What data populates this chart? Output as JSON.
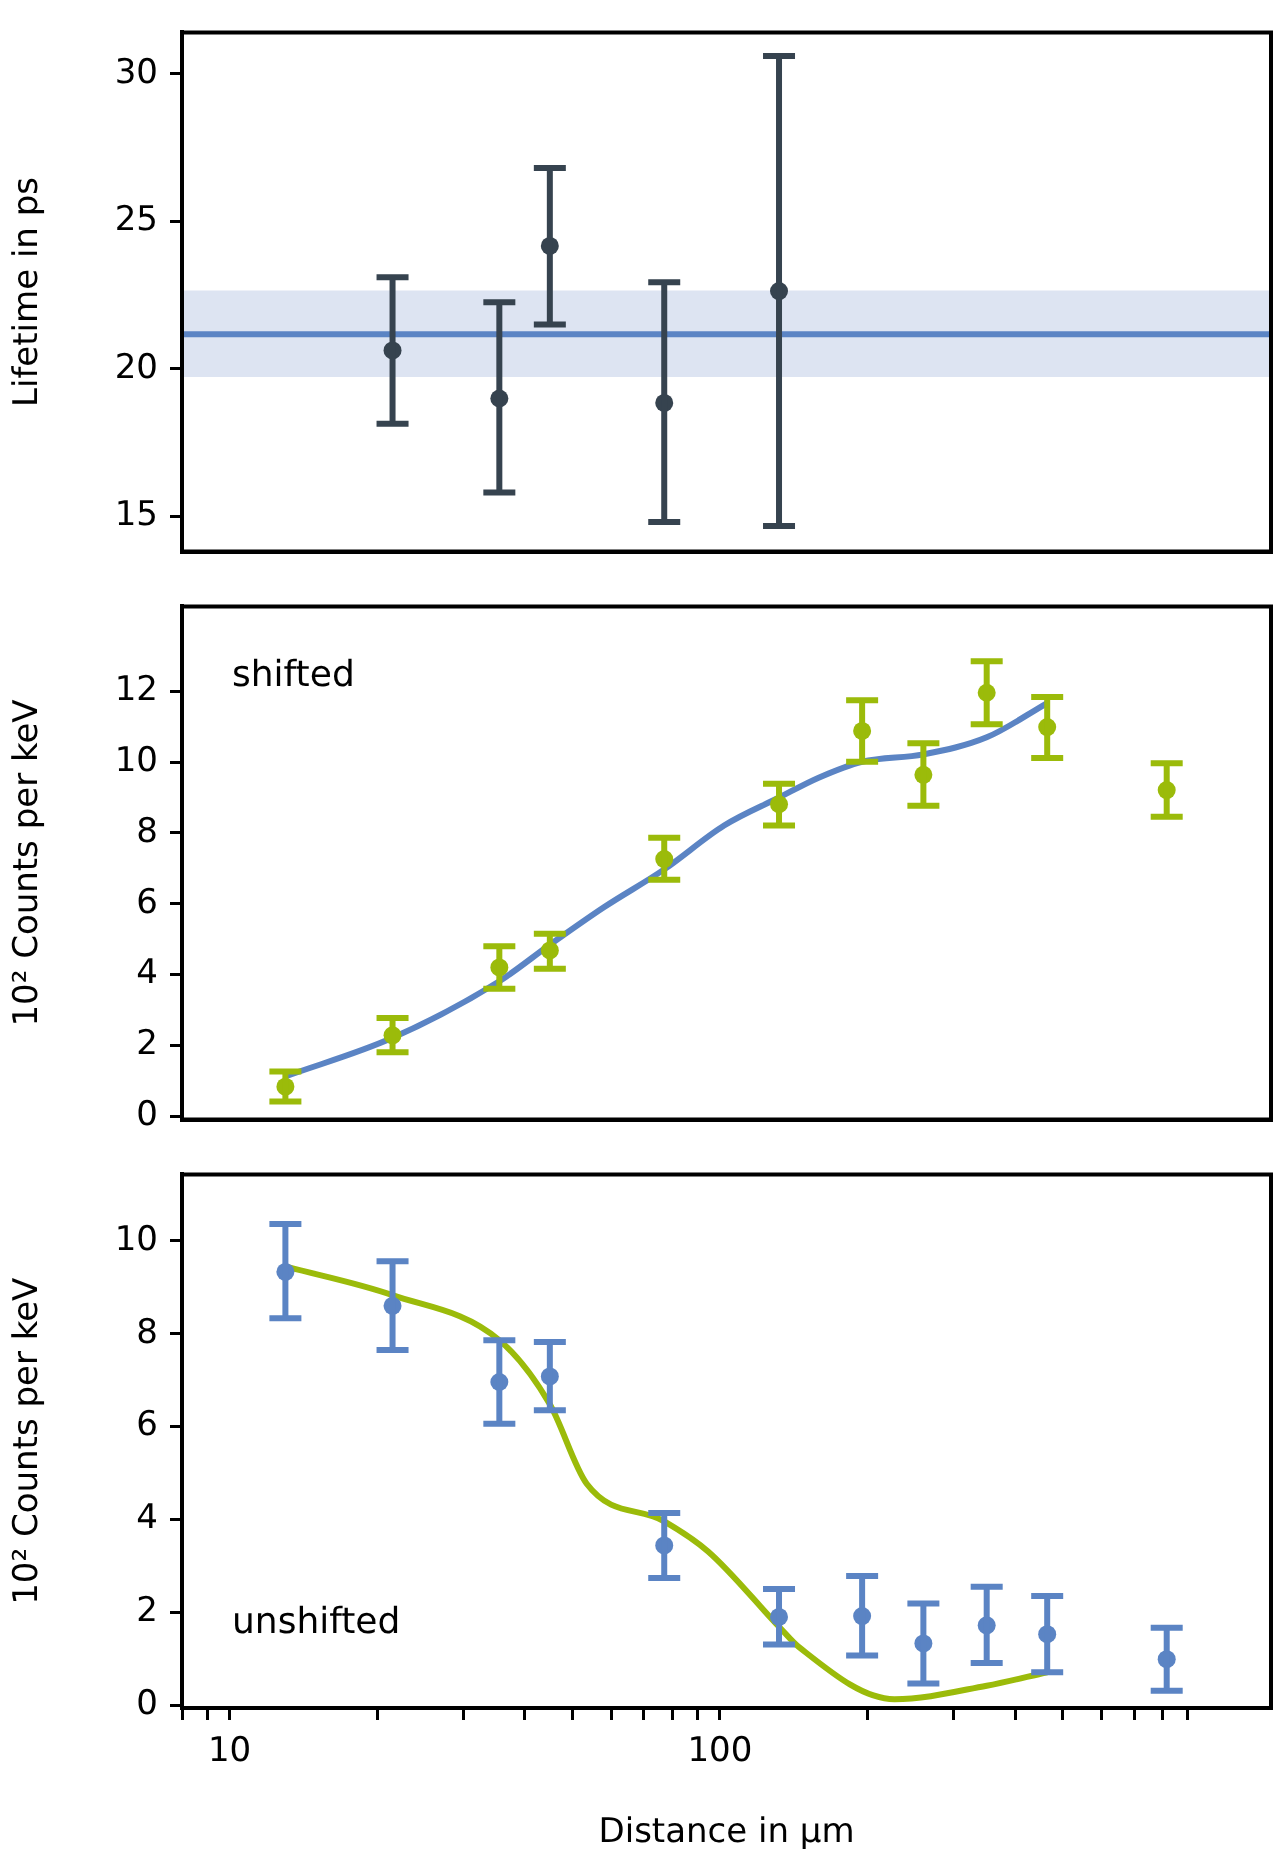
{
  "chart_data": [
    {
      "type": "scatter",
      "ylabel": "Lifetime in ps",
      "x": [
        21.5,
        35.5,
        45,
        77,
        132
      ],
      "series": [
        {
          "color": "#36434f",
          "marker": "circle",
          "values": [
            20.62,
            18.99,
            24.16,
            18.84,
            22.63
          ],
          "errors": [
            [
              18.13,
              23.1
            ],
            [
              15.8,
              22.25
            ],
            [
              21.5,
              26.8
            ],
            [
              14.8,
              22.93
            ],
            [
              14.67,
              30.6
            ]
          ]
        }
      ],
      "ref_lines": [
        {
          "axis": "y",
          "value": 21.17,
          "color": "#5b84c4"
        }
      ],
      "bands": [
        {
          "axis": "y",
          "from": 19.72,
          "to": 22.65,
          "color": "#dde4f2"
        }
      ],
      "log": "x",
      "xlim": [
        8,
        1330
      ],
      "ylim": [
        13.8,
        31.4
      ],
      "yticks": [
        15,
        20,
        25,
        30
      ],
      "tick_labels": "y",
      "grid": false,
      "legend": false
    },
    {
      "type": "scatter",
      "ylabel": "10² Counts per keV",
      "annotations": [
        "shifted"
      ],
      "x": [
        13,
        21.5,
        35.5,
        45,
        77,
        132,
        195,
        260,
        350,
        465,
        815
      ],
      "series": [
        {
          "color": "#9bbb0a",
          "marker": "circle",
          "values": [
            0.83,
            2.28,
            4.2,
            4.68,
            7.26,
            8.81,
            10.88,
            9.64,
            11.96,
            10.99,
            9.21
          ],
          "errors": [
            [
              0.41,
              1.26
            ],
            [
              1.8,
              2.77
            ],
            [
              3.6,
              4.8
            ],
            [
              4.16,
              5.15
            ],
            [
              6.68,
              7.86
            ],
            [
              8.21,
              9.39
            ],
            [
              10.01,
              11.75
            ],
            [
              8.77,
              10.53
            ],
            [
              11.07,
              12.85
            ],
            [
              10.12,
              11.84
            ],
            [
              8.46,
              9.97
            ]
          ]
        },
        {
          "type": "line",
          "color": "#5b84c4",
          "x": [
            13,
            21.5,
            35.5,
            45,
            58,
            77,
            102,
            132,
            159,
            195,
            260,
            350,
            465
          ],
          "values": [
            1.12,
            2.21,
            3.81,
            4.84,
            5.9,
            6.97,
            8.21,
            9.0,
            9.56,
            10.01,
            10.22,
            10.7,
            11.67
          ]
        }
      ],
      "log": "x",
      "xlim": [
        8,
        1330
      ],
      "ylim": [
        -0.1,
        14.4
      ],
      "yticks": [
        0,
        2,
        4,
        6,
        8,
        10,
        12
      ],
      "tick_labels": "y",
      "grid": false,
      "legend": false
    },
    {
      "type": "scatter",
      "xlabel": "Distance in µm",
      "ylabel": "10² Counts per keV",
      "annotations": [
        "unshifted"
      ],
      "x": [
        13,
        21.5,
        35.5,
        45,
        77,
        132,
        195,
        260,
        350,
        465,
        815
      ],
      "series": [
        {
          "color": "#5b84c4",
          "marker": "circle",
          "values": [
            9.33,
            8.6,
            6.96,
            7.08,
            3.44,
            1.9,
            1.92,
            1.33,
            1.72,
            1.53,
            0.99
          ],
          "errors": [
            [
              8.33,
              10.36
            ],
            [
              7.65,
              9.56
            ],
            [
              6.06,
              7.86
            ],
            [
              6.35,
              7.82
            ],
            [
              2.74,
              4.14
            ],
            [
              1.31,
              2.5
            ],
            [
              1.07,
              2.78
            ],
            [
              0.47,
              2.19
            ],
            [
              0.91,
              2.55
            ],
            [
              0.71,
              2.35
            ],
            [
              0.31,
              1.67
            ]
          ]
        },
        {
          "type": "line",
          "color": "#9bbb0a",
          "x": [
            13,
            21.5,
            35.5,
            45,
            53.5,
            77,
            94.6,
            132,
            145,
            227,
            350,
            465
          ],
          "values": [
            9.45,
            8.83,
            7.86,
            6.48,
            4.77,
            3.96,
            3.31,
            1.69,
            1.25,
            0.13,
            0.42,
            0.71
          ]
        }
      ],
      "log": "x",
      "xlim": [
        8,
        1330
      ],
      "ylim": [
        -0.06,
        11.43
      ],
      "yticks": [
        0,
        2,
        4,
        6,
        8,
        10
      ],
      "xticks": [
        {
          "value": 8,
          "label": null
        },
        {
          "value": 9,
          "label": null
        },
        10,
        {
          "value": 20,
          "label": null
        },
        {
          "value": 30,
          "label": null
        },
        {
          "value": 40,
          "label": null
        },
        {
          "value": 50,
          "label": null
        },
        {
          "value": 60,
          "label": null
        },
        {
          "value": 70,
          "label": null
        },
        {
          "value": 80,
          "label": null
        },
        {
          "value": 90,
          "label": null
        },
        100,
        {
          "value": 200,
          "label": null
        },
        {
          "value": 300,
          "label": null
        },
        {
          "value": 400,
          "label": null
        },
        {
          "value": 500,
          "label": null
        },
        {
          "value": 600,
          "label": null
        },
        {
          "value": 700,
          "label": null
        },
        {
          "value": 800,
          "label": null
        },
        {
          "value": 900,
          "label": null
        }
      ],
      "grid": false,
      "legend": false
    }
  ]
}
